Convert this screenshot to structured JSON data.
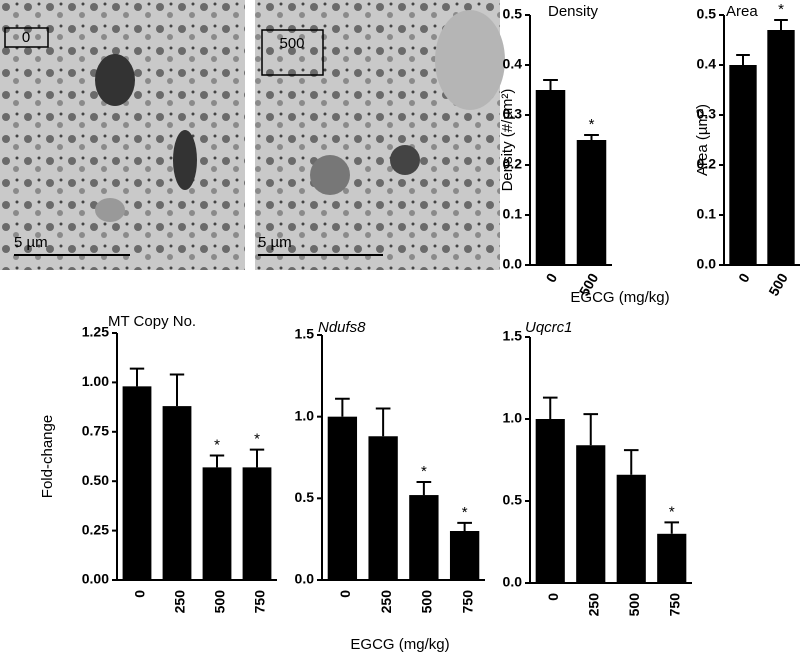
{
  "images": [
    {
      "label": "0",
      "scale": "5 µm"
    },
    {
      "label": "500",
      "scale": "5 µm"
    }
  ],
  "chart_data": [
    {
      "type": "bar",
      "title": "Density",
      "ylabel": "Density (#/µm²)",
      "categories": [
        "0",
        "500"
      ],
      "values": [
        0.35,
        0.25
      ],
      "errors": [
        0.02,
        0.01
      ],
      "markers": [
        null,
        "*"
      ],
      "color": "#000000",
      "ylim": [
        0,
        0.5
      ],
      "yticks": [
        {
          "value": 0,
          "label": "0.0"
        },
        0.1,
        0.2,
        0.3,
        0.4,
        0.5
      ]
    },
    {
      "type": "bar",
      "title": "Area",
      "ylabel": "Area (µm²)",
      "xlabel": "EGCG (mg/kg)",
      "categories": [
        "0",
        "500"
      ],
      "values": [
        0.4,
        0.47
      ],
      "errors": [
        0.02,
        0.02
      ],
      "markers": [
        null,
        "*"
      ],
      "color": "#000000",
      "ylim": [
        0,
        0.5
      ],
      "yticks": [
        {
          "value": 0,
          "label": "0.0"
        },
        0.1,
        0.2,
        0.3,
        0.4,
        0.5
      ]
    },
    {
      "type": "bar",
      "title": "MT Copy No.",
      "ylabel": "Fold-change",
      "categories": [
        "0",
        "250",
        "500",
        "750"
      ],
      "values": [
        0.98,
        0.88,
        0.57,
        0.57
      ],
      "errors": [
        0.09,
        0.16,
        0.06,
        0.09
      ],
      "markers": [
        null,
        null,
        "*",
        "*"
      ],
      "color": "#000000",
      "ylim": [
        0,
        1.25
      ],
      "yticks": [
        {
          "value": 0,
          "label": "0.00"
        },
        {
          "value": 0.25,
          "label": "0.25"
        },
        {
          "value": 0.5,
          "label": "0.50"
        },
        {
          "value": 0.75,
          "label": "0.75"
        },
        {
          "value": 1,
          "label": "1.00"
        },
        {
          "value": 1.25,
          "label": "1.25"
        }
      ]
    },
    {
      "type": "bar",
      "title": "Ndufs8",
      "title_italic": true,
      "xlabel": "EGCG (mg/kg)",
      "categories": [
        "0",
        "250",
        "500",
        "750"
      ],
      "values": [
        1.0,
        0.88,
        0.52,
        0.3
      ],
      "errors": [
        0.11,
        0.17,
        0.08,
        0.05
      ],
      "markers": [
        null,
        null,
        "*",
        "*"
      ],
      "color": "#000000",
      "ylim": [
        0,
        1.5
      ],
      "yticks": [
        {
          "value": 0,
          "label": "0.0"
        },
        0.5,
        {
          "value": 1,
          "label": "1.0"
        },
        1.5
      ]
    },
    {
      "type": "bar",
      "title": "Uqcrc1",
      "title_italic": true,
      "categories": [
        "0",
        "250",
        "500",
        "750"
      ],
      "values": [
        1.0,
        0.84,
        0.66,
        0.3
      ],
      "errors": [
        0.13,
        0.19,
        0.15,
        0.07
      ],
      "markers": [
        null,
        null,
        null,
        "*"
      ],
      "color": "#000000",
      "ylim": [
        0,
        1.5
      ],
      "yticks": [
        {
          "value": 0,
          "label": "0.0"
        },
        0.5,
        {
          "value": 1,
          "label": "1.0"
        },
        1.5
      ]
    }
  ]
}
